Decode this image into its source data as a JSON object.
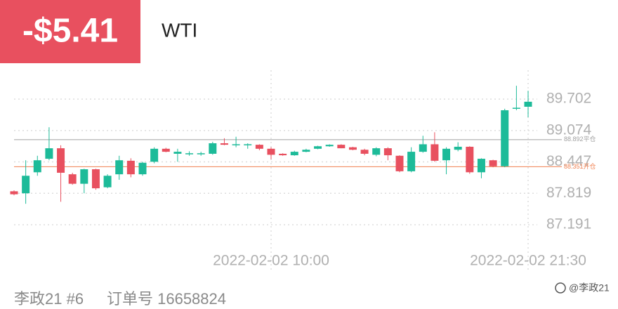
{
  "header": {
    "pnl": "-$5.41",
    "symbol": "WTI"
  },
  "footer": {
    "account": "李政21 #6",
    "order": "订单号 16658824",
    "watermark": "@李政21"
  },
  "chart_data": {
    "type": "candlestick",
    "categories": [
      null,
      null,
      null,
      null,
      null,
      null,
      null,
      null,
      null,
      null,
      null,
      null,
      null,
      null,
      null,
      null,
      null,
      null,
      null,
      null,
      null,
      null,
      "2022-02-02 10:00",
      null,
      null,
      null,
      null,
      null,
      null,
      null,
      null,
      null,
      null,
      null,
      null,
      null,
      null,
      null,
      null,
      null,
      null,
      null,
      null,
      null,
      "2022-02-02 21:30"
    ],
    "open": [
      87.86,
      87.82,
      88.24,
      88.51,
      88.72,
      88.2,
      88.01,
      88.3,
      87.94,
      88.2,
      88.47,
      88.2,
      88.45,
      88.71,
      88.61,
      88.61,
      88.6,
      88.61,
      88.82,
      88.78,
      88.78,
      88.79,
      88.71,
      88.61,
      88.58,
      88.65,
      88.71,
      88.76,
      88.79,
      88.74,
      88.69,
      88.59,
      88.72,
      88.57,
      88.26,
      88.65,
      88.8,
      88.48,
      88.69,
      88.75,
      88.24,
      88.48,
      88.36,
      89.51,
      89.55
    ],
    "high": [
      87.88,
      88.48,
      88.57,
      89.14,
      88.78,
      88.23,
      88.31,
      88.31,
      88.2,
      88.57,
      88.52,
      88.45,
      88.74,
      88.73,
      88.71,
      88.66,
      88.65,
      88.85,
      88.92,
      88.95,
      88.82,
      88.8,
      88.74,
      88.62,
      88.67,
      88.71,
      88.77,
      88.8,
      88.8,
      88.75,
      88.71,
      88.74,
      88.74,
      88.58,
      88.74,
      88.97,
      89.04,
      88.74,
      88.84,
      88.76,
      88.52,
      88.49,
      89.51,
      89.97,
      89.87
    ],
    "low": [
      87.78,
      87.61,
      88.17,
      88.48,
      87.65,
      87.99,
      87.82,
      87.89,
      87.92,
      88.09,
      88.14,
      88.17,
      88.42,
      88.64,
      88.45,
      88.57,
      88.57,
      88.59,
      88.78,
      88.74,
      88.71,
      88.68,
      88.5,
      88.57,
      88.57,
      88.64,
      88.7,
      88.75,
      88.72,
      88.68,
      88.58,
      88.56,
      88.48,
      88.24,
      88.24,
      88.63,
      88.45,
      88.2,
      88.66,
      88.21,
      88.12,
      88.34,
      88.34,
      89.48,
      89.34
    ],
    "close": [
      87.8,
      88.17,
      88.48,
      88.72,
      88.23,
      88.01,
      88.3,
      87.92,
      88.17,
      88.48,
      88.2,
      88.43,
      88.71,
      88.65,
      88.65,
      88.62,
      88.62,
      88.82,
      88.79,
      88.8,
      88.8,
      88.71,
      88.59,
      88.58,
      88.65,
      88.69,
      88.76,
      88.79,
      88.72,
      88.69,
      88.61,
      88.72,
      88.58,
      88.26,
      88.65,
      88.8,
      88.47,
      88.71,
      88.75,
      88.24,
      88.51,
      88.36,
      89.48,
      89.53,
      89.65
    ],
    "up_color": "#1dbb99",
    "down_color": "#e8505f",
    "ylim": [
      86.77,
      90.28
    ],
    "yticks": [
      87.191,
      87.819,
      {
        "value": 88.447,
        "label": "88.447"
      },
      {
        "value": 89.074,
        "label": "89.074"
      },
      {
        "value": 89.702,
        "label": "89.702"
      }
    ],
    "grid": true,
    "ref_lines": [
      {
        "value": 88.892,
        "label": "88.892平仓",
        "color": "#a0a0a0"
      },
      {
        "value": 88.351,
        "label": "88.351开仓",
        "color": "#f08050"
      }
    ]
  }
}
